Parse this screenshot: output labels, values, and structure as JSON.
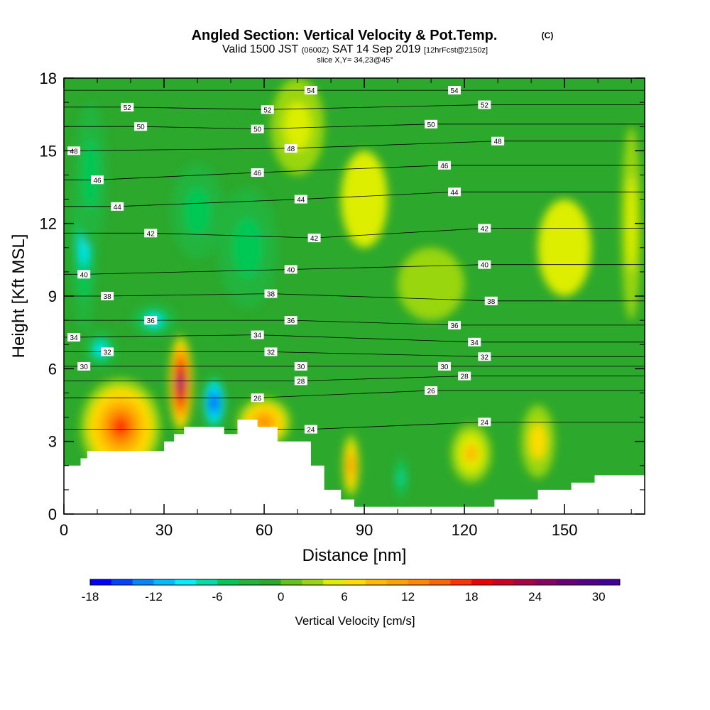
{
  "header": {
    "title": "Angled Section: Vertical Velocity & Pot.Temp.",
    "title_unit": "(C)",
    "valid_prefix": "Valid 1500 JST",
    "valid_z": "(0600Z)",
    "valid_date": "SAT 14 Sep 2019",
    "valid_fcst": "[12hrFcst@2150z]",
    "slice": "slice X,Y= 34,23@45°"
  },
  "chart_data": {
    "type": "heatmap",
    "xlabel": "Distance [nm]",
    "ylabel": "Height [Kft MSL]",
    "xlim": [
      0,
      174
    ],
    "ylim": [
      0,
      18
    ],
    "xticks": [
      0,
      30,
      60,
      90,
      120,
      150
    ],
    "yticks": [
      0,
      3,
      6,
      9,
      12,
      15,
      18
    ],
    "colorbar": {
      "label": "Vertical Velocity [cm/s]",
      "range": [
        -18,
        32
      ],
      "step": 2,
      "tick_values": [
        -18,
        -12,
        -6,
        0,
        6,
        12,
        18,
        24,
        30
      ],
      "colors": [
        "#0000ff",
        "#0044ff",
        "#0088ff",
        "#00bbff",
        "#00eeff",
        "#00ddaa",
        "#00c855",
        "#22b43c",
        "#2ca82c",
        "#66c21a",
        "#99d611",
        "#ddee00",
        "#ffdd00",
        "#ffbb00",
        "#ffa200",
        "#ff8800",
        "#ff6600",
        "#ff3300",
        "#ee0000",
        "#cc0022",
        "#aa0044",
        "#880066",
        "#660077",
        "#550088",
        "#440099"
      ]
    },
    "terrain_kft": [
      [
        0,
        2.0
      ],
      [
        5,
        2.0
      ],
      [
        5,
        2.3
      ],
      [
        7,
        2.3
      ],
      [
        7,
        2.6
      ],
      [
        30,
        2.6
      ],
      [
        30,
        3.0
      ],
      [
        33,
        3.0
      ],
      [
        33,
        3.3
      ],
      [
        36,
        3.3
      ],
      [
        36,
        3.6
      ],
      [
        48,
        3.6
      ],
      [
        48,
        3.3
      ],
      [
        52,
        3.3
      ],
      [
        52,
        3.9
      ],
      [
        58,
        3.9
      ],
      [
        58,
        3.6
      ],
      [
        64,
        3.6
      ],
      [
        64,
        3.0
      ],
      [
        74,
        3.0
      ],
      [
        74,
        2.0
      ],
      [
        78,
        2.0
      ],
      [
        78,
        1.0
      ],
      [
        83,
        1.0
      ],
      [
        83,
        0.6
      ],
      [
        87,
        0.6
      ],
      [
        87,
        0.3
      ],
      [
        129,
        0.3
      ],
      [
        129,
        0.6
      ],
      [
        142,
        0.6
      ],
      [
        142,
        1.0
      ],
      [
        152,
        1.0
      ],
      [
        152,
        1.3
      ],
      [
        159,
        1.3
      ],
      [
        159,
        1.6
      ],
      [
        174,
        1.6
      ]
    ],
    "anomalies": [
      {
        "x": 6,
        "y": 11.5,
        "value": -9,
        "rx": 4,
        "ry": 4.0
      },
      {
        "x": 8,
        "y": 14.0,
        "value": -6,
        "rx": 5,
        "ry": 3.0
      },
      {
        "x": 11,
        "y": 6.8,
        "value": -9,
        "rx": 5,
        "ry": 0.8
      },
      {
        "x": 27,
        "y": 8.0,
        "value": -9,
        "rx": 7,
        "ry": 0.7
      },
      {
        "x": 17,
        "y": 3.6,
        "value": 16,
        "rx": 12,
        "ry": 2.0
      },
      {
        "x": 35,
        "y": 5.4,
        "value": 28,
        "rx": 3.5,
        "ry": 2.0
      },
      {
        "x": 45,
        "y": 4.6,
        "value": -17,
        "rx": 3.5,
        "ry": 1.2
      },
      {
        "x": 60,
        "y": 3.8,
        "value": 12,
        "rx": 8,
        "ry": 1.0
      },
      {
        "x": 86,
        "y": 2.0,
        "value": 12,
        "rx": 2.5,
        "ry": 1.3
      },
      {
        "x": 101,
        "y": 1.5,
        "value": -8,
        "rx": 2.0,
        "ry": 1.0
      },
      {
        "x": 122,
        "y": 2.5,
        "value": 8,
        "rx": 6,
        "ry": 1.2
      },
      {
        "x": 142,
        "y": 3.0,
        "value": 6,
        "rx": 5,
        "ry": 1.5
      },
      {
        "x": 55,
        "y": 11.0,
        "value": -6,
        "rx": 9,
        "ry": 2.5
      },
      {
        "x": 40,
        "y": 12.5,
        "value": -5,
        "rx": 8,
        "ry": 2.0
      },
      {
        "x": 70,
        "y": 16.0,
        "value": 5,
        "rx": 8,
        "ry": 2.0
      },
      {
        "x": 90,
        "y": 13.0,
        "value": 4,
        "rx": 7,
        "ry": 2.0
      },
      {
        "x": 150,
        "y": 11.0,
        "value": 4,
        "rx": 8,
        "ry": 2.0
      },
      {
        "x": 170,
        "y": 12.0,
        "value": 5,
        "rx": 3,
        "ry": 4.0
      },
      {
        "x": 110,
        "y": 9.5,
        "value": 2,
        "rx": 10,
        "ry": 1.5
      }
    ],
    "isentrope_labels": [
      {
        "text": "54",
        "x": 74,
        "y": 17.5
      },
      {
        "text": "54",
        "x": 117,
        "y": 17.5
      },
      {
        "text": "52",
        "x": 19,
        "y": 16.8
      },
      {
        "text": "52",
        "x": 61,
        "y": 16.7
      },
      {
        "text": "52",
        "x": 126,
        "y": 16.9
      },
      {
        "text": "50",
        "x": 23,
        "y": 16.0
      },
      {
        "text": "50",
        "x": 58,
        "y": 15.9
      },
      {
        "text": "50",
        "x": 110,
        "y": 16.1
      },
      {
        "text": "48",
        "x": 3,
        "y": 15.0
      },
      {
        "text": "48",
        "x": 68,
        "y": 15.1
      },
      {
        "text": "48",
        "x": 130,
        "y": 15.4
      },
      {
        "text": "46",
        "x": 10,
        "y": 13.8
      },
      {
        "text": "46",
        "x": 58,
        "y": 14.1
      },
      {
        "text": "46",
        "x": 114,
        "y": 14.4
      },
      {
        "text": "44",
        "x": 16,
        "y": 12.7
      },
      {
        "text": "44",
        "x": 71,
        "y": 13.0
      },
      {
        "text": "44",
        "x": 117,
        "y": 13.3
      },
      {
        "text": "42",
        "x": 26,
        "y": 11.6
      },
      {
        "text": "42",
        "x": 75,
        "y": 11.4
      },
      {
        "text": "42",
        "x": 126,
        "y": 11.8
      },
      {
        "text": "40",
        "x": 6,
        "y": 9.9
      },
      {
        "text": "40",
        "x": 68,
        "y": 10.1
      },
      {
        "text": "40",
        "x": 126,
        "y": 10.3
      },
      {
        "text": "38",
        "x": 13,
        "y": 9.0
      },
      {
        "text": "38",
        "x": 62,
        "y": 9.1
      },
      {
        "text": "38",
        "x": 128,
        "y": 8.8
      },
      {
        "text": "36",
        "x": 26,
        "y": 8.0
      },
      {
        "text": "36",
        "x": 68,
        "y": 8.0
      },
      {
        "text": "36",
        "x": 117,
        "y": 7.8
      },
      {
        "text": "34",
        "x": 3,
        "y": 7.3
      },
      {
        "text": "34",
        "x": 58,
        "y": 7.4
      },
      {
        "text": "34",
        "x": 123,
        "y": 7.1
      },
      {
        "text": "32",
        "x": 13,
        "y": 6.7
      },
      {
        "text": "32",
        "x": 62,
        "y": 6.7
      },
      {
        "text": "32",
        "x": 126,
        "y": 6.5
      },
      {
        "text": "30",
        "x": 6,
        "y": 6.1
      },
      {
        "text": "30",
        "x": 71,
        "y": 6.1
      },
      {
        "text": "30",
        "x": 114,
        "y": 6.1
      },
      {
        "text": "28",
        "x": 71,
        "y": 5.5
      },
      {
        "text": "28",
        "x": 120,
        "y": 5.7
      },
      {
        "text": "26",
        "x": 58,
        "y": 4.8
      },
      {
        "text": "26",
        "x": 110,
        "y": 5.1
      },
      {
        "text": "24",
        "x": 74,
        "y": 3.5
      },
      {
        "text": "24",
        "x": 126,
        "y": 3.8
      }
    ]
  }
}
